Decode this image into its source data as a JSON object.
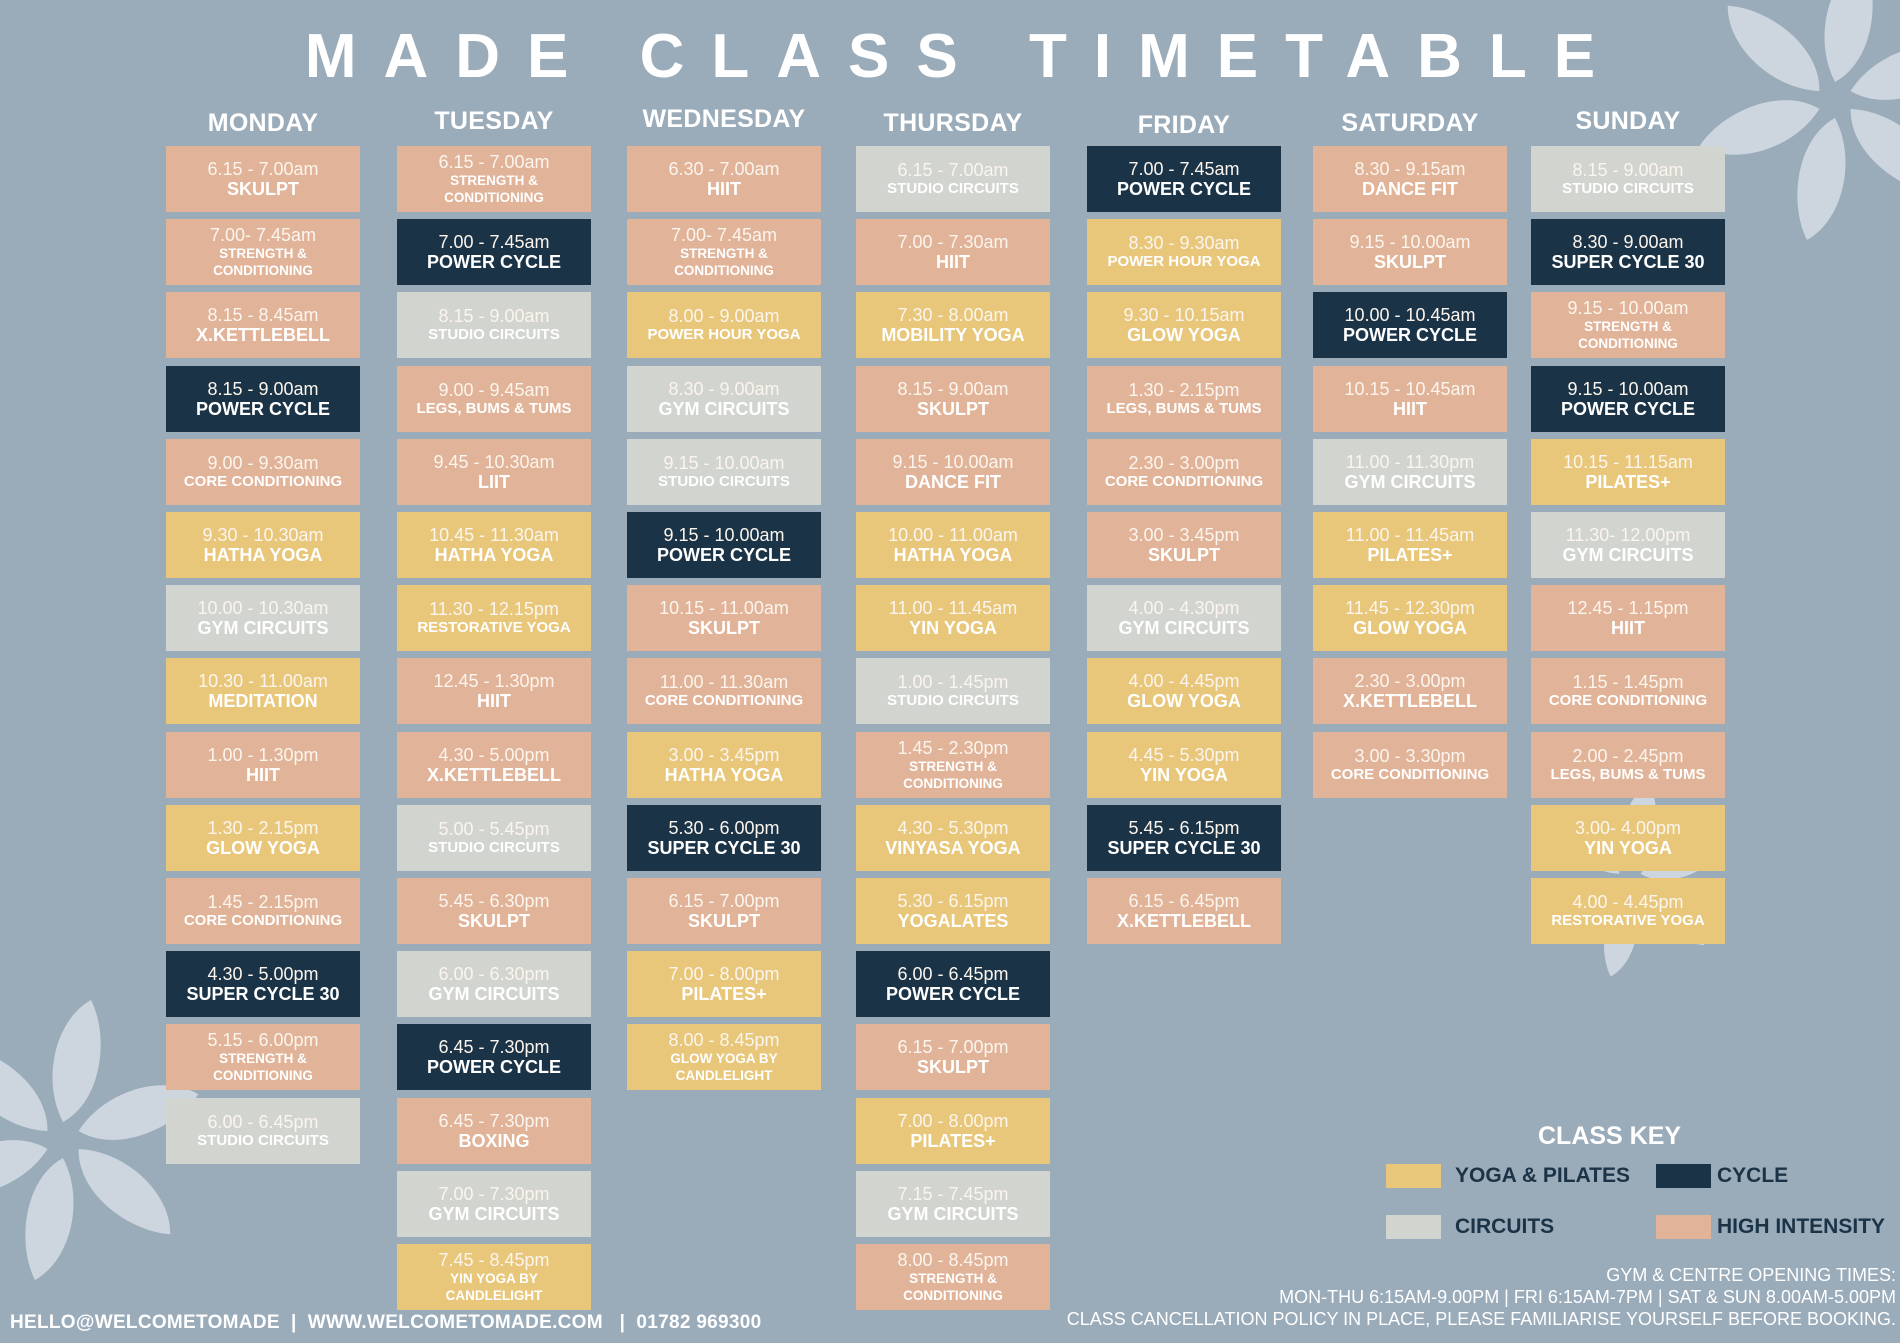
{
  "title": "MADE CLASS TIMETABLE",
  "colors": {
    "background": "#9aabba",
    "yoga_pilates": "#e8c77b",
    "cycle": "#1b3347",
    "circuits": "#d1d4cf",
    "high_intensity": "#e1b398",
    "flower": "#cdd6de"
  },
  "days": [
    {
      "name": "MONDAY",
      "classes": [
        {
          "time": "6.15 - 7.00am",
          "name": "SKULPT",
          "type": "high"
        },
        {
          "time": "7.00- 7.45am",
          "name": "STRENGTH & CONDITIONING",
          "type": "high"
        },
        {
          "time": "8.15 - 8.45am",
          "name": "X.KETTLEBELL",
          "type": "high"
        },
        {
          "time": "8.15 - 9.00am",
          "name": "POWER CYCLE",
          "type": "cycle"
        },
        {
          "time": "9.00 - 9.30am",
          "name": "CORE CONDITIONING",
          "type": "high"
        },
        {
          "time": "9.30 - 10.30am",
          "name": "HATHA YOGA",
          "type": "yoga"
        },
        {
          "time": "10.00 - 10.30am",
          "name": "GYM CIRCUITS",
          "type": "circuits"
        },
        {
          "time": "10.30 - 11.00am",
          "name": "MEDITATION",
          "type": "yoga"
        },
        {
          "time": "1.00 - 1.30pm",
          "name": "HIIT",
          "type": "high"
        },
        {
          "time": "1.30 - 2.15pm",
          "name": "GLOW YOGA",
          "type": "yoga"
        },
        {
          "time": "1.45 - 2.15pm",
          "name": "CORE CONDITIONING",
          "type": "high"
        },
        {
          "time": "4.30 - 5.00pm",
          "name": "SUPER CYCLE 30",
          "type": "cycle"
        },
        {
          "time": "5.15 - 6.00pm",
          "name": "STRENGTH & CONDITIONING",
          "type": "high"
        },
        {
          "time": "6.00 - 6.45pm",
          "name": "STUDIO CIRCUITS",
          "type": "circuits"
        }
      ]
    },
    {
      "name": "TUESDAY",
      "classes": [
        {
          "time": "6.15 - 7.00am",
          "name": "STRENGTH & CONDITIONING",
          "type": "high"
        },
        {
          "time": "7.00 - 7.45am",
          "name": "POWER CYCLE",
          "type": "cycle"
        },
        {
          "time": "8.15 -  9.00am",
          "name": "STUDIO CIRCUITS",
          "type": "circuits"
        },
        {
          "time": "9.00 - 9.45am",
          "name": "LEGS, BUMS & TUMS",
          "type": "high"
        },
        {
          "time": "9.45 - 10.30am",
          "name": "LIIT",
          "type": "high"
        },
        {
          "time": "10.45 - 11.30am",
          "name": "HATHA YOGA",
          "type": "yoga"
        },
        {
          "time": "11.30 - 12.15pm",
          "name": "RESTORATIVE YOGA",
          "type": "yoga"
        },
        {
          "time": "12.45 - 1.30pm",
          "name": "HIIT",
          "type": "high"
        },
        {
          "time": "4.30 - 5.00pm",
          "name": "X.KETTLEBELL",
          "type": "high"
        },
        {
          "time": "5.00 - 5.45pm",
          "name": "STUDIO CIRCUITS",
          "type": "circuits"
        },
        {
          "time": "5.45 - 6.30pm",
          "name": "SKULPT",
          "type": "high"
        },
        {
          "time": "6.00 - 6.30pm",
          "name": "GYM CIRCUITS",
          "type": "circuits"
        },
        {
          "time": "6.45 - 7.30pm",
          "name": "POWER CYCLE",
          "type": "cycle"
        },
        {
          "time": "6.45 - 7.30pm",
          "name": "BOXING",
          "type": "high"
        },
        {
          "time": "7.00 - 7.30pm",
          "name": "GYM CIRCUITS",
          "type": "circuits"
        },
        {
          "time": "7.45 - 8.45pm",
          "name": "YIN YOGA BY CANDLELIGHT",
          "type": "yoga"
        }
      ]
    },
    {
      "name": "WEDNESDAY",
      "classes": [
        {
          "time": "6.30 - 7.00am",
          "name": "HIIT",
          "type": "high"
        },
        {
          "time": "7.00- 7.45am",
          "name": "STRENGTH & CONDITIONING",
          "type": "high"
        },
        {
          "time": "8.00 - 9.00am",
          "name": "POWER HOUR YOGA",
          "type": "yoga"
        },
        {
          "time": "8.30 - 9.00am",
          "name": "GYM CIRCUITS",
          "type": "circuits"
        },
        {
          "time": "9.15 -  10.00am",
          "name": "STUDIO CIRCUITS",
          "type": "circuits"
        },
        {
          "time": "9.15 - 10.00am",
          "name": "POWER CYCLE",
          "type": "cycle"
        },
        {
          "time": "10.15 - 11.00am",
          "name": "SKULPT",
          "type": "high"
        },
        {
          "time": "11.00 - 11.30am",
          "name": "CORE CONDITIONING",
          "type": "high"
        },
        {
          "time": "3.00 - 3.45pm",
          "name": "HATHA YOGA",
          "type": "yoga"
        },
        {
          "time": "5.30 - 6.00pm",
          "name": "SUPER CYCLE 30",
          "type": "cycle"
        },
        {
          "time": "6.15 - 7.00pm",
          "name": "SKULPT",
          "type": "high"
        },
        {
          "time": "7.00 - 8.00pm",
          "name": "PILATES+",
          "type": "yoga"
        },
        {
          "time": "8.00 - 8.45pm",
          "name": "GLOW YOGA BY CANDLELIGHT",
          "type": "yoga"
        }
      ]
    },
    {
      "name": "THURSDAY",
      "classes": [
        {
          "time": "6.15 - 7.00am",
          "name": "STUDIO CIRCUITS",
          "type": "circuits"
        },
        {
          "time": "7.00 - 7.30am",
          "name": "HIIT",
          "type": "high"
        },
        {
          "time": "7.30 - 8.00am",
          "name": "MOBILITY YOGA",
          "type": "yoga"
        },
        {
          "time": "8.15 - 9.00am",
          "name": "SKULPT",
          "type": "high"
        },
        {
          "time": "9.15 - 10.00am",
          "name": "DANCE FIT",
          "type": "high"
        },
        {
          "time": "10.00 - 11.00am",
          "name": "HATHA YOGA",
          "type": "yoga"
        },
        {
          "time": "11.00 - 11.45am",
          "name": "YIN YOGA",
          "type": "yoga"
        },
        {
          "time": "1.00  - 1.45pm",
          "name": "STUDIO CIRCUITS",
          "type": "circuits"
        },
        {
          "time": "1.45 - 2.30pm",
          "name": "STRENGTH & CONDITIONING",
          "type": "high"
        },
        {
          "time": "4.30 - 5.30pm",
          "name": "VINYASA YOGA",
          "type": "yoga"
        },
        {
          "time": "5.30 - 6.15pm",
          "name": "YOGALATES",
          "type": "yoga"
        },
        {
          "time": "6.00 - 6.45pm",
          "name": "POWER CYCLE",
          "type": "cycle"
        },
        {
          "time": "6.15 - 7.00pm",
          "name": "SKULPT",
          "type": "high"
        },
        {
          "time": "7.00 - 8.00pm",
          "name": "PILATES+",
          "type": "yoga"
        },
        {
          "time": "7.15 - 7.45pm",
          "name": "GYM CIRCUITS",
          "type": "circuits"
        },
        {
          "time": "8.00 - 8.45pm",
          "name": "STRENGTH & CONDITIONING",
          "type": "high"
        }
      ]
    },
    {
      "name": "FRIDAY",
      "classes": [
        {
          "time": "7.00 - 7.45am",
          "name": "POWER CYCLE",
          "type": "cycle"
        },
        {
          "time": "8.30 - 9.30am",
          "name": "POWER HOUR YOGA",
          "type": "yoga"
        },
        {
          "time": "9.30 - 10.15am",
          "name": "GLOW YOGA",
          "type": "yoga"
        },
        {
          "time": "1.30 - 2.15pm",
          "name": "LEGS, BUMS & TUMS",
          "type": "high"
        },
        {
          "time": "2.30 - 3.00pm",
          "name": "CORE CONDITIONING",
          "type": "high"
        },
        {
          "time": "3.00 - 3.45pm",
          "name": "SKULPT",
          "type": "high"
        },
        {
          "time": "4.00 - 4.30pm",
          "name": "GYM CIRCUITS",
          "type": "circuits"
        },
        {
          "time": "4.00 - 4.45pm",
          "name": "GLOW YOGA",
          "type": "yoga"
        },
        {
          "time": "4.45 - 5.30pm",
          "name": "YIN YOGA",
          "type": "yoga"
        },
        {
          "time": "5.45 - 6.15pm",
          "name": "SUPER CYCLE 30",
          "type": "cycle"
        },
        {
          "time": "6.15 - 6.45pm",
          "name": "X.KETTLEBELL",
          "type": "high"
        }
      ]
    },
    {
      "name": "SATURDAY",
      "classes": [
        {
          "time": "8.30 -  9.15am",
          "name": "DANCE FIT",
          "type": "high"
        },
        {
          "time": "9.15 - 10.00am",
          "name": "SKULPT",
          "type": "high"
        },
        {
          "time": "10.00 - 10.45am",
          "name": "POWER CYCLE",
          "type": "cycle"
        },
        {
          "time": "10.15 - 10.45am",
          "name": "HIIT",
          "type": "high"
        },
        {
          "time": "11.00 - 11.30pm",
          "name": "GYM CIRCUITS",
          "type": "circuits"
        },
        {
          "time": "11.00 - 11.45am",
          "name": "PILATES+",
          "type": "yoga"
        },
        {
          "time": "11.45 - 12.30pm",
          "name": "GLOW YOGA",
          "type": "yoga"
        },
        {
          "time": "2.30 - 3.00pm",
          "name": "X.KETTLEBELL",
          "type": "high"
        },
        {
          "time": "3.00 - 3.30pm",
          "name": "CORE CONDITIONING",
          "type": "high"
        }
      ]
    },
    {
      "name": "SUNDAY",
      "classes": [
        {
          "time": "8.15 - 9.00am",
          "name": "STUDIO CIRCUITS",
          "type": "circuits"
        },
        {
          "time": "8.30 - 9.00am",
          "name": "SUPER CYCLE 30",
          "type": "cycle"
        },
        {
          "time": "9.15 - 10.00am",
          "name": "STRENGTH & CONDITIONING",
          "type": "high"
        },
        {
          "time": "9.15 - 10.00am",
          "name": "POWER CYCLE",
          "type": "cycle"
        },
        {
          "time": "10.15 - 11.15am",
          "name": "PILATES+",
          "type": "yoga"
        },
        {
          "time": "11.30- 12.00pm",
          "name": "GYM CIRCUITS",
          "type": "circuits"
        },
        {
          "time": "12.45 - 1.15pm",
          "name": "HIIT",
          "type": "high"
        },
        {
          "time": "1.15 - 1.45pm",
          "name": "CORE CONDITIONING",
          "type": "high"
        },
        {
          "time": "2.00 - 2.45pm",
          "name": "LEGS, BUMS & TUMS",
          "type": "high"
        },
        {
          "time": "3.00- 4.00pm",
          "name": "YIN YOGA",
          "type": "yoga"
        },
        {
          "time": "4.00 - 4.45pm",
          "name": "RESTORATIVE YOGA",
          "type": "yoga"
        }
      ]
    }
  ],
  "class_key": {
    "title": "CLASS KEY",
    "items": [
      {
        "label": "YOGA & PILATES",
        "type": "yoga"
      },
      {
        "label": "CYCLE",
        "type": "cycle"
      },
      {
        "label": "CIRCUITS",
        "type": "circuits"
      },
      {
        "label": "HIGH INTENSITY",
        "type": "high"
      }
    ]
  },
  "footer": {
    "email": "HELLO@WELCOMETOMADE",
    "website": "WWW.WELCOMETOMADE.COM",
    "phone": "01782 969300",
    "opening_title": "GYM & CENTRE OPENING TIMES:",
    "opening_hours": "MON-THU 6:15AM-9.00PM | FRI 6:15AM-7PM | SAT & SUN  8.00AM-5.00PM",
    "policy": "CLASS CANCELLATION POLICY IN PLACE, PLEASE FAMILIARISE YOURSELF BEFORE BOOKING."
  }
}
